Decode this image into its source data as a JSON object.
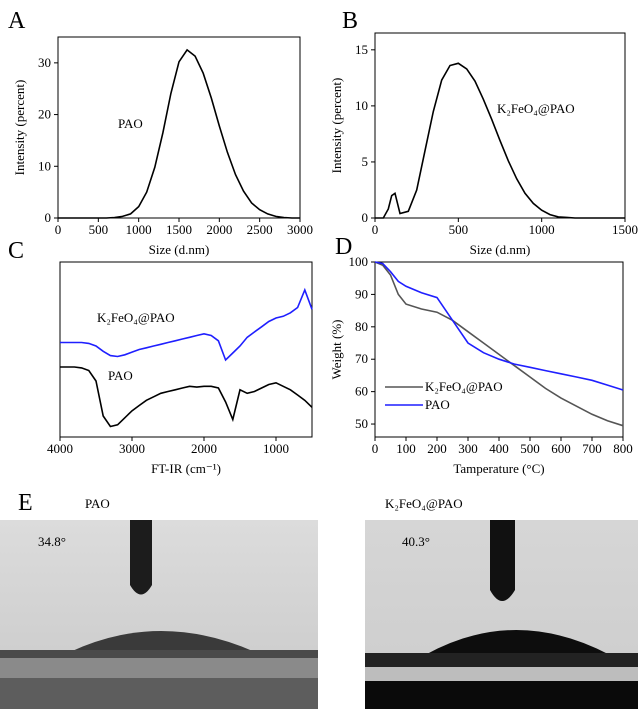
{
  "chart_data": [
    {
      "type": "line",
      "panel_label": "A",
      "xlabel": "Size (d.nm)",
      "ylabel": "Intensity (percent)",
      "annotation": "PAO",
      "color": "#000000",
      "x": [
        0,
        600,
        700,
        800,
        900,
        1000,
        1100,
        1200,
        1300,
        1400,
        1500,
        1600,
        1700,
        1800,
        1900,
        2000,
        2100,
        2200,
        2300,
        2400,
        2500,
        2600,
        2700,
        2800,
        2900,
        3000
      ],
      "values": [
        0,
        0,
        0.1,
        0.3,
        0.8,
        2.2,
        5.0,
        9.8,
        16.5,
        24.1,
        30.2,
        32.5,
        31.3,
        28.0,
        23.2,
        17.8,
        12.7,
        8.4,
        5.2,
        2.9,
        1.6,
        0.8,
        0.3,
        0.1,
        0,
        0
      ],
      "xlim": [
        0,
        3000
      ],
      "xticks": [
        0,
        500,
        1000,
        1500,
        2000,
        2500,
        3000
      ],
      "ylim": [
        0,
        35
      ],
      "yticks": [
        0,
        10,
        20,
        30
      ]
    },
    {
      "type": "line",
      "panel_label": "B",
      "xlabel": "Size (d.nm)",
      "ylabel": "Intensity (percent)",
      "annotation": "K₂FeO₄@PAO",
      "color": "#000000",
      "x": [
        0,
        50,
        80,
        100,
        120,
        150,
        200,
        250,
        300,
        350,
        400,
        450,
        500,
        550,
        600,
        650,
        700,
        750,
        800,
        850,
        900,
        950,
        1000,
        1050,
        1100,
        1150,
        1200,
        1300,
        1500
      ],
      "values": [
        0,
        0,
        0.8,
        2.0,
        2.2,
        0.4,
        0.6,
        2.5,
        6.0,
        9.5,
        12.3,
        13.6,
        13.8,
        13.3,
        12.2,
        10.6,
        8.8,
        6.9,
        5.1,
        3.5,
        2.2,
        1.3,
        0.7,
        0.3,
        0.1,
        0.05,
        0,
        0,
        0
      ],
      "xlim": [
        0,
        1500
      ],
      "xticks": [
        0,
        500,
        1000,
        1500
      ],
      "ylim": [
        0,
        16.5
      ],
      "yticks": [
        0,
        5,
        10,
        15
      ]
    },
    {
      "type": "line",
      "panel_label": "C",
      "xlabel": "FT-IR (cm⁻¹)",
      "x": [
        4000,
        3900,
        3800,
        3700,
        3600,
        3500,
        3400,
        3300,
        3200,
        3100,
        3000,
        2900,
        2800,
        2700,
        2600,
        2500,
        2400,
        2300,
        2200,
        2100,
        2000,
        1900,
        1800,
        1700,
        1600,
        1500,
        1400,
        1300,
        1200,
        1100,
        1000,
        900,
        800,
        700,
        600,
        500
      ],
      "series": [
        {
          "name": "K₂FeO₄@PAO",
          "color": "#1f1fff",
          "values": [
            54,
            54,
            54,
            54,
            53.5,
            52,
            49,
            46.5,
            46,
            47,
            48.5,
            50,
            51,
            52,
            53,
            54,
            55,
            56,
            57,
            58,
            59,
            58,
            55,
            44,
            48,
            52,
            57,
            60,
            63,
            66,
            68,
            69,
            71,
            74,
            84,
            73
          ]
        },
        {
          "name": "PAO",
          "color": "#000000",
          "values": [
            40,
            40,
            40,
            39.5,
            38,
            32,
            12,
            6,
            7,
            11,
            15,
            18,
            21,
            23,
            25,
            26,
            27,
            28,
            29,
            28.5,
            29,
            29,
            28,
            20,
            10,
            27,
            25,
            26,
            28,
            30,
            31,
            29,
            27,
            24,
            21,
            17
          ]
        }
      ],
      "xlim": [
        4000,
        500
      ],
      "xticks": [
        4000,
        3000,
        2000,
        1000
      ],
      "ylim": [
        0,
        100
      ]
    },
    {
      "type": "line",
      "panel_label": "D",
      "xlabel": "Tamperature (°C)",
      "ylabel": "Weight (%)",
      "legend": "lower left",
      "x": [
        0,
        25,
        50,
        75,
        100,
        150,
        200,
        250,
        300,
        350,
        400,
        450,
        500,
        550,
        600,
        650,
        700,
        750,
        800
      ],
      "series": [
        {
          "name": "K₂FeO₄@PAO",
          "color": "#555555",
          "values": [
            100,
            99,
            96,
            90,
            87,
            85.5,
            84.5,
            82,
            78.5,
            75,
            71.5,
            68,
            64.5,
            61,
            58,
            55.5,
            53,
            51,
            49.5
          ]
        },
        {
          "name": "PAO",
          "color": "#1f1fff",
          "values": [
            100,
            99.5,
            97,
            94,
            92.5,
            90.5,
            89,
            82,
            75,
            72,
            70,
            68.5,
            67.5,
            66.5,
            65.5,
            64.5,
            63.5,
            62,
            60.5
          ]
        }
      ],
      "xlim": [
        0,
        800
      ],
      "xticks": [
        0,
        100,
        200,
        300,
        400,
        500,
        600,
        700,
        800
      ],
      "ylim": [
        46,
        100
      ],
      "yticks": [
        50,
        60,
        70,
        80,
        90,
        100
      ]
    }
  ],
  "images": {
    "panel_label": "E",
    "items": [
      {
        "title": "PAO",
        "angle": "34.8°"
      },
      {
        "title": "K₂FeO₄@PAO",
        "angle": "40.3°"
      }
    ]
  }
}
